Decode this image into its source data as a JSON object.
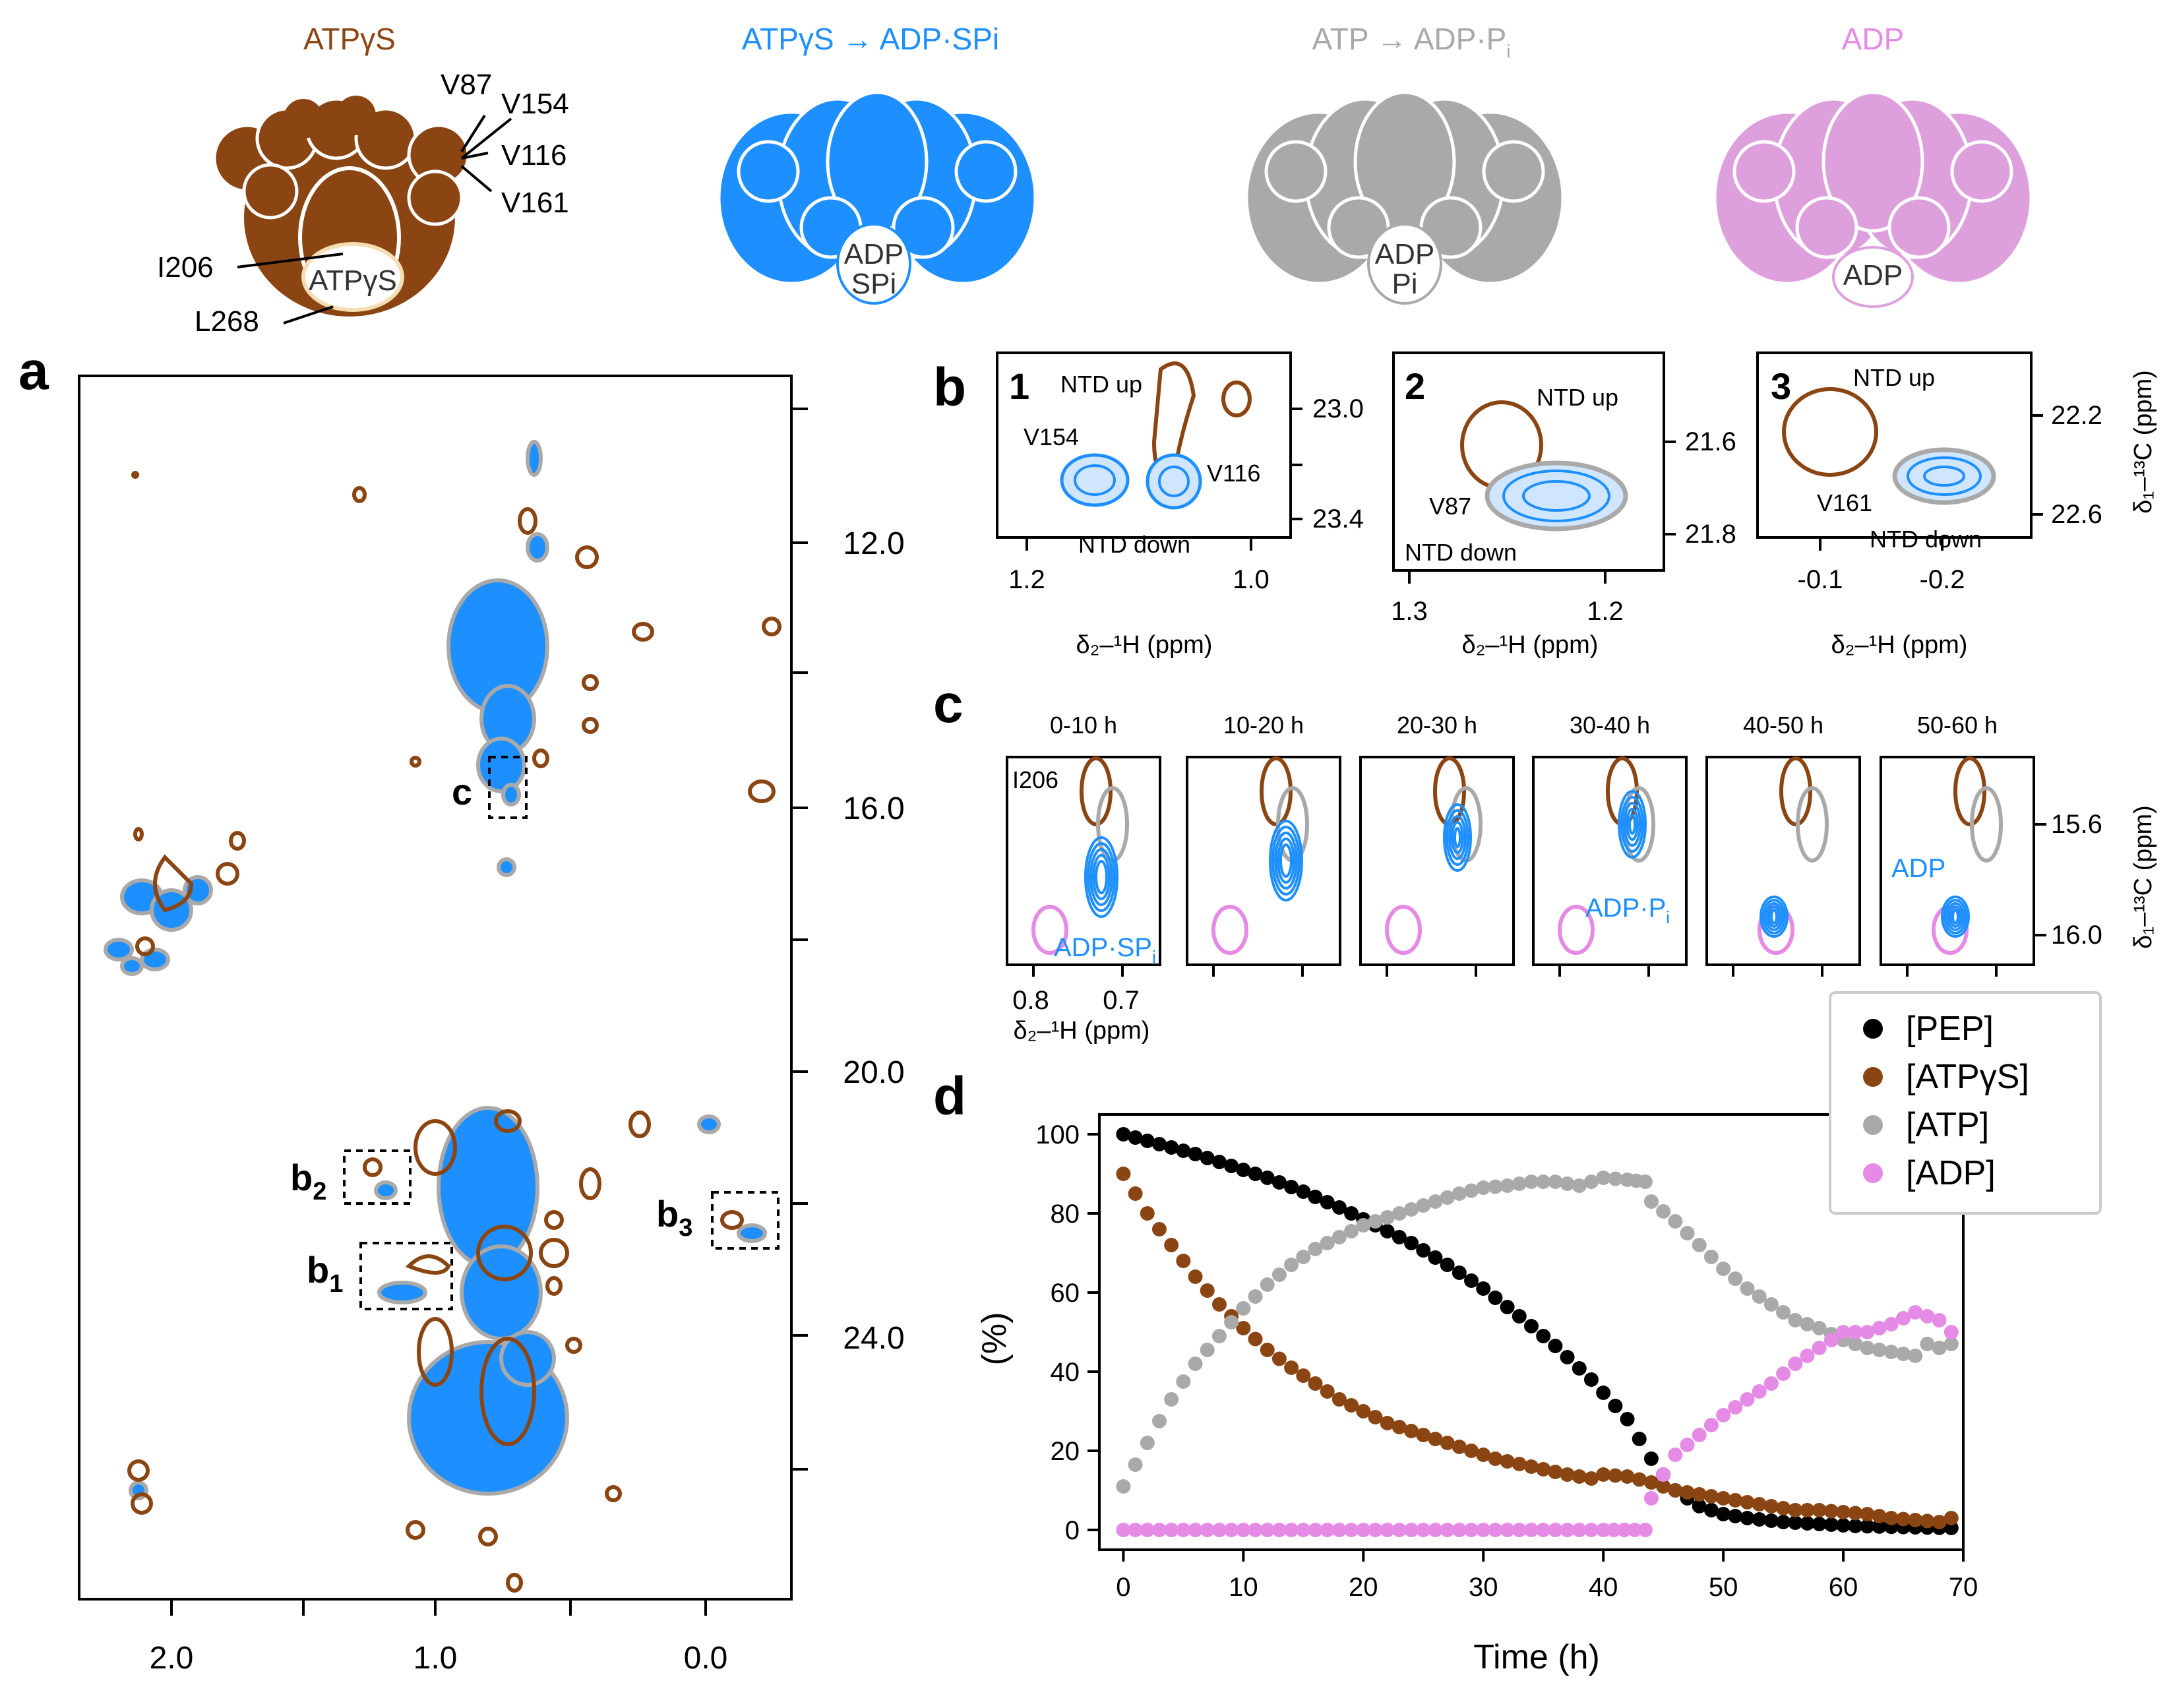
{
  "colors": {
    "brown": "#8B4513",
    "blue": "#1E8FFF",
    "gray": "#A9A9A9",
    "pink": "#E58AE5",
    "black": "#000000",
    "pinkLight": "#DDA0DD"
  },
  "header": {
    "states": [
      {
        "title": "ATPγS",
        "nucleotide": "ATPγS"
      },
      {
        "title": "ATPγS → ADP·SPi",
        "nucleotide": "ADP",
        "nucleotide2": "SPi"
      },
      {
        "title": "ATP → ADP·P",
        "title_sub": "i",
        "nucleotide": "ADP",
        "nucleotide2": "Pi"
      },
      {
        "title": "ADP",
        "nucleotide": "ADP"
      }
    ],
    "residue_labels": [
      "V87",
      "V154",
      "V116",
      "V161",
      "I206",
      "L268"
    ]
  },
  "panel_a": {
    "letter": "a",
    "x_ticks": [
      "2.0",
      "1.0",
      "0.0"
    ],
    "y_ticks": [
      "12.0",
      "16.0",
      "20.0",
      "24.0"
    ],
    "box_labels": {
      "c": "c",
      "b2": "b",
      "b2_sub": "2",
      "b1": "b",
      "b1_sub": "1",
      "b3": "b",
      "b3_sub": "3"
    }
  },
  "panel_b": {
    "letter": "b",
    "subpanels": [
      {
        "num": "1",
        "labels": [
          "NTD up",
          "V154",
          "V116",
          "NTD down"
        ],
        "x_ticks": [
          "1.2",
          "1.0"
        ],
        "y_ticks": [
          "23.0",
          "23.4"
        ],
        "xlabel": "δ₂–¹H (ppm)"
      },
      {
        "num": "2",
        "labels": [
          "NTD up",
          "V87",
          "NTD down"
        ],
        "x_ticks": [
          "1.3",
          "1.2"
        ],
        "y_ticks": [
          "21.6",
          "21.8"
        ],
        "xlabel": "δ₂–¹H (ppm)"
      },
      {
        "num": "3",
        "labels": [
          "NTD up",
          "V161",
          "NTD down"
        ],
        "x_ticks": [
          "-0.1",
          "-0.2"
        ],
        "y_ticks": [
          "22.2",
          "22.6"
        ],
        "xlabel": "δ₂–¹H (ppm)",
        "ylabel": "δ₁–¹³C (ppm)"
      }
    ]
  },
  "panel_c": {
    "letter": "c",
    "time_windows": [
      "0-10 h",
      "10-20 h",
      "20-30 h",
      "30-40 h",
      "40-50 h",
      "50-60 h"
    ],
    "residue": "I206",
    "annotations": {
      "adp_spi": "ADP·SP",
      "adp_spi_sub": "i",
      "adp_pi": "ADP·P",
      "adp_pi_sub": "i",
      "adp": "ADP"
    },
    "x_ticks": [
      "0.8",
      "0.7"
    ],
    "xlabel": "δ₂–¹H (ppm)",
    "y_ticks": [
      "15.6",
      "16.0"
    ],
    "ylabel": "δ₁–¹³C (ppm)"
  },
  "chart_data": {
    "type": "scatter",
    "panel": "d",
    "title": "",
    "xlabel": "Time (h)",
    "ylabel": "(%)",
    "xlim": [
      -2,
      70
    ],
    "ylim": [
      -5,
      105
    ],
    "x_ticks": [
      "0",
      "10",
      "20",
      "30",
      "40",
      "50",
      "60",
      "70"
    ],
    "y_ticks": [
      "0",
      "20",
      "40",
      "60",
      "80",
      "100"
    ],
    "legend": {
      "placement": "top-right",
      "entries": [
        "[PEP]",
        "[ATPγS]",
        "[ATP]",
        "[ADP]"
      ]
    },
    "series": [
      {
        "name": "[PEP]",
        "color": "#000000",
        "points": [
          [
            0,
            100
          ],
          [
            3,
            97.5
          ],
          [
            6,
            95
          ],
          [
            9,
            92
          ],
          [
            12,
            89
          ],
          [
            15,
            85.5
          ],
          [
            18,
            81.5
          ],
          [
            21,
            77
          ],
          [
            24,
            72.5
          ],
          [
            27,
            67
          ],
          [
            30,
            61
          ],
          [
            33,
            54
          ],
          [
            36,
            46.5
          ],
          [
            39,
            38
          ],
          [
            42,
            28
          ],
          [
            44,
            18
          ],
          [
            46,
            10
          ],
          [
            48,
            6
          ],
          [
            50,
            4
          ],
          [
            52,
            3
          ],
          [
            55,
            2
          ],
          [
            58,
            1.5
          ],
          [
            61,
            1
          ],
          [
            64,
            0.8
          ],
          [
            67,
            0.6
          ],
          [
            69,
            0.5
          ]
        ]
      },
      {
        "name": "[ATPγS]",
        "color": "#8B4513",
        "points": [
          [
            0,
            90
          ],
          [
            2,
            80
          ],
          [
            4,
            72
          ],
          [
            6,
            64
          ],
          [
            8,
            57
          ],
          [
            10,
            51
          ],
          [
            12,
            45.5
          ],
          [
            14,
            41
          ],
          [
            16,
            37
          ],
          [
            18,
            33
          ],
          [
            20,
            30
          ],
          [
            22,
            27
          ],
          [
            25,
            24
          ],
          [
            28,
            21
          ],
          [
            31,
            18
          ],
          [
            34,
            16
          ],
          [
            37,
            14
          ],
          [
            39,
            13
          ],
          [
            40,
            14
          ],
          [
            42,
            13.5
          ],
          [
            44,
            12
          ],
          [
            46,
            10
          ],
          [
            48,
            9
          ],
          [
            50,
            8
          ],
          [
            52,
            7
          ],
          [
            54,
            6
          ],
          [
            56,
            5
          ],
          [
            58,
            5
          ],
          [
            60,
            4.5
          ],
          [
            62,
            4
          ],
          [
            64,
            3
          ],
          [
            66,
            2.5
          ],
          [
            68,
            2
          ],
          [
            69,
            3
          ]
        ]
      },
      {
        "name": "[ATP]",
        "color": "#A9A9A9",
        "points": [
          [
            0,
            11
          ],
          [
            2,
            22
          ],
          [
            4,
            33
          ],
          [
            6,
            42
          ],
          [
            8,
            49
          ],
          [
            10,
            56
          ],
          [
            12,
            62
          ],
          [
            14,
            67
          ],
          [
            16,
            71
          ],
          [
            18,
            74
          ],
          [
            20,
            77
          ],
          [
            22,
            79
          ],
          [
            24,
            81
          ],
          [
            26,
            83
          ],
          [
            28,
            85
          ],
          [
            30,
            86.5
          ],
          [
            32,
            87
          ],
          [
            34,
            88
          ],
          [
            36,
            88
          ],
          [
            38,
            87
          ],
          [
            40,
            89
          ],
          [
            42,
            88.5
          ],
          [
            43.5,
            88
          ],
          [
            44,
            83
          ],
          [
            46,
            78
          ],
          [
            48,
            72
          ],
          [
            50,
            66
          ],
          [
            52,
            61
          ],
          [
            54,
            57
          ],
          [
            56,
            53
          ],
          [
            58,
            51
          ],
          [
            60,
            48
          ],
          [
            62,
            46
          ],
          [
            64,
            45
          ],
          [
            66,
            44
          ],
          [
            67,
            47
          ],
          [
            68,
            46
          ],
          [
            69,
            47
          ]
        ]
      },
      {
        "name": "[ADP]",
        "color": "#E58AE5",
        "points": [
          [
            0,
            0
          ],
          [
            5,
            0
          ],
          [
            10,
            0
          ],
          [
            15,
            0
          ],
          [
            20,
            0
          ],
          [
            25,
            0
          ],
          [
            30,
            0
          ],
          [
            35,
            0
          ],
          [
            40,
            0
          ],
          [
            43.5,
            0
          ],
          [
            44,
            8
          ],
          [
            45,
            14
          ],
          [
            46,
            19
          ],
          [
            48,
            24
          ],
          [
            50,
            29
          ],
          [
            52,
            33
          ],
          [
            54,
            37
          ],
          [
            56,
            42
          ],
          [
            58,
            46
          ],
          [
            60,
            50
          ],
          [
            62,
            50
          ],
          [
            64,
            52
          ],
          [
            66,
            55
          ],
          [
            68,
            53
          ],
          [
            69,
            50
          ]
        ]
      }
    ]
  }
}
